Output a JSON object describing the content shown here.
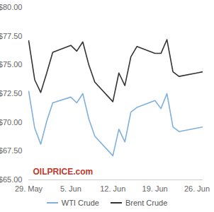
{
  "chart_data": {
    "type": "line",
    "x": [
      0,
      1,
      2,
      3,
      4,
      7,
      8,
      9,
      10,
      11,
      14,
      15,
      16,
      17,
      18,
      21,
      22,
      23,
      24,
      25,
      28,
      29
    ],
    "xlim": [
      0,
      29
    ],
    "xticks": [
      {
        "value": 0,
        "label": "29. May"
      },
      {
        "value": 7,
        "label": "5. Jun"
      },
      {
        "value": 14,
        "label": "12. Jun"
      },
      {
        "value": 21,
        "label": "19. Jun"
      },
      {
        "value": 28,
        "label": "26. Jun"
      }
    ],
    "ylim": [
      65,
      80
    ],
    "yticks": [
      {
        "value": 65,
        "label": "$65.00"
      },
      {
        "value": 67.5,
        "label": "$67.50"
      },
      {
        "value": 70,
        "label": "$70.00"
      },
      {
        "value": 72.5,
        "label": "$72.50"
      },
      {
        "value": 75,
        "label": "$75.00"
      },
      {
        "value": 77.5,
        "label": "$77.50"
      },
      {
        "value": 80,
        "label": "$80.00"
      }
    ],
    "grid": false,
    "legend": "bottom",
    "annotations": [
      "OILPRICE.com"
    ],
    "series": [
      {
        "name": "WTI Crude",
        "color": "#7fb1dc",
        "values": [
          72.7,
          69.5,
          68.1,
          70.1,
          71.7,
          72.2,
          71.7,
          72.5,
          70.3,
          68.8,
          67.1,
          69.4,
          68.3,
          70.9,
          71.3,
          71.9,
          71.2,
          72.5,
          69.6,
          69.2,
          69.5,
          69.6
        ]
      },
      {
        "name": "Brent Crude",
        "color": "#333333",
        "values": [
          77.1,
          73.7,
          72.6,
          74.3,
          76.1,
          76.7,
          76.2,
          77.0,
          75.0,
          73.5,
          71.8,
          74.3,
          73.2,
          75.7,
          76.6,
          76.0,
          76.0,
          77.2,
          74.4,
          74.0,
          74.3,
          74.4
        ]
      }
    ]
  }
}
